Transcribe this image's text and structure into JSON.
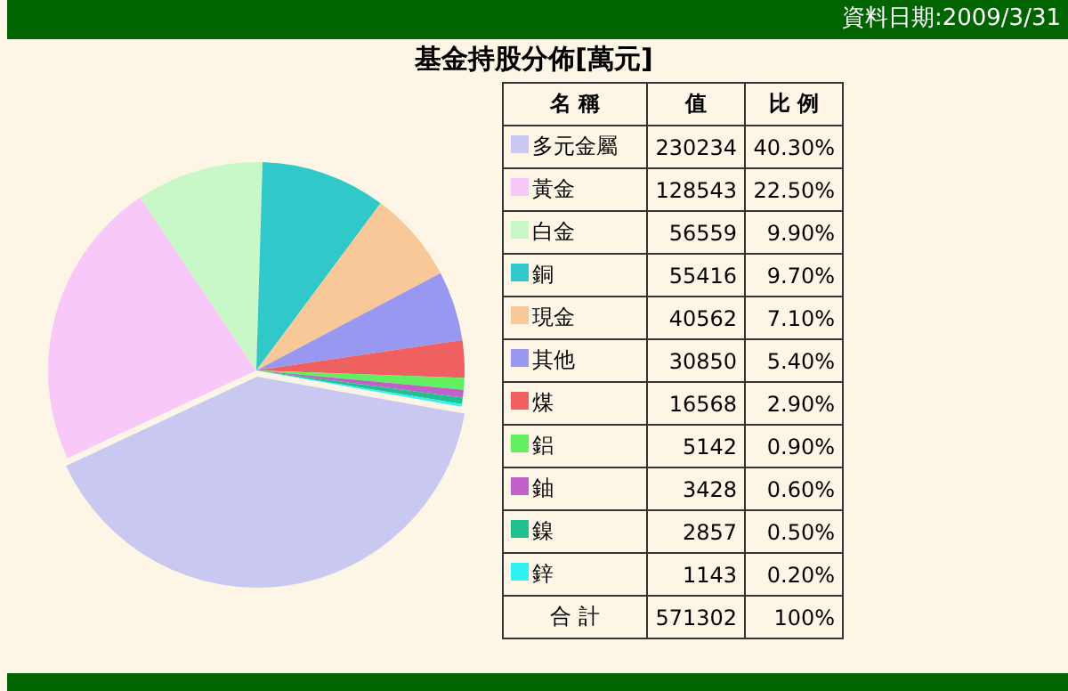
{
  "chart_data": {
    "type": "pie",
    "title": "基金持股分佈[萬元]",
    "subtitle": "資料日期:2009/3/31",
    "categories": [
      "多元金屬",
      "黃金",
      "白金",
      "銅",
      "現金",
      "其他",
      "煤",
      "鋁",
      "鈾",
      "鎳",
      "鋅"
    ],
    "values": [
      230234,
      128543,
      56559,
      55416,
      40562,
      30850,
      16568,
      5142,
      3428,
      2857,
      1143
    ],
    "colors": [
      "#c8c8f0",
      "#f8c8f8",
      "#c8f8c8",
      "#30c8c8",
      "#f8c898",
      "#9898f0",
      "#f06060",
      "#60f060",
      "#c060c8",
      "#20c090",
      "#30f0f0"
    ],
    "data_labels": true,
    "totals": [
      "571302",
      "100%"
    ],
    "annotations": [
      "名 稱",
      "值",
      "比 例",
      "合 計",
      "40.30%",
      "22.50%",
      "9.90%",
      "9.70%",
      "7.10%",
      "5.40%",
      "2.90%",
      "0.90%",
      "0.60%",
      "0.50%",
      "0.20%"
    ],
    "legend": "right"
  }
}
